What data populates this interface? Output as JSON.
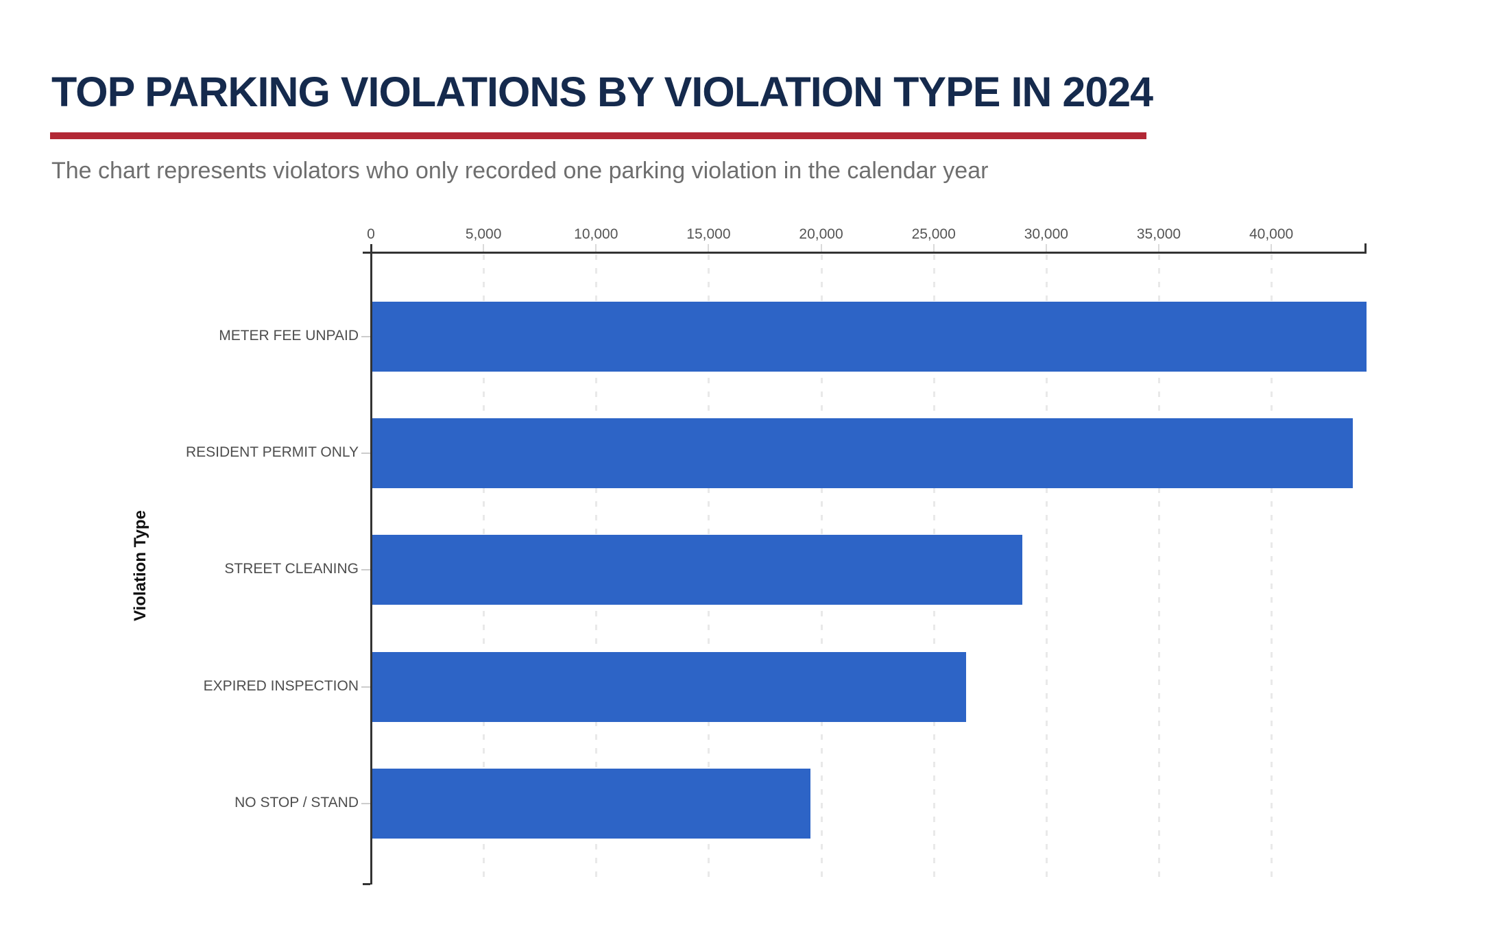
{
  "header": {
    "title": "TOP PARKING VIOLATIONS BY VIOLATION TYPE IN 2024",
    "subtitle": "The chart represents violators who only recorded one parking violation in the calendar year"
  },
  "colors": {
    "title_text": "#152a4d",
    "accent_rule": "#b22835",
    "bar": "#2d64c6",
    "axis_line": "#333333",
    "tick_label": "#555555",
    "category_label": "#4d4d4d",
    "gridline": "#e9e9e9",
    "subtitle_text": "#6e6e6e",
    "background": "#ffffff"
  },
  "chart_data": {
    "type": "bar",
    "orientation": "horizontal",
    "title": "TOP PARKING VIOLATIONS BY VIOLATION TYPE IN 2024",
    "subtitle": "The chart represents violators who only recorded one parking violation in the calendar year",
    "categories": [
      "METER FEE UNPAID",
      "RESIDENT PERMIT ONLY",
      "STREET CLEANING",
      "EXPIRED INSPECTION",
      "NO STOP / STAND"
    ],
    "values": [
      44200,
      43600,
      28900,
      26400,
      19500
    ],
    "xlabel": "",
    "ylabel": "Violation Type",
    "xlim": [
      0,
      44200
    ],
    "x_ticks": [
      0,
      5000,
      10000,
      15000,
      20000,
      25000,
      30000,
      35000,
      40000
    ],
    "x_tick_labels": [
      "0",
      "5,000",
      "10,000",
      "15,000",
      "20,000",
      "25,000",
      "30,000",
      "35,000",
      "40,000"
    ],
    "x_axis_position": "top",
    "grid": "vertical-dashed",
    "legend": "none",
    "bar_value_labels": "none"
  }
}
